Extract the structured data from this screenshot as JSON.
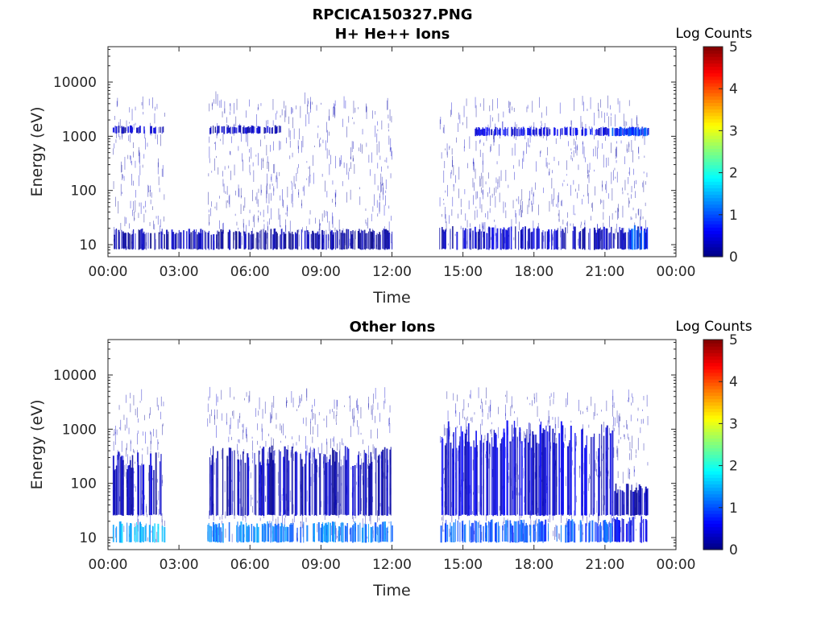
{
  "figure_title": "RPCICA150327.PNG",
  "chart_data": [
    {
      "type": "heatmap",
      "title": "H+ He++ Ions",
      "xlabel": "Time",
      "ylabel": "Energy (eV)",
      "x_ticks": [
        "00:00",
        "03:00",
        "06:00",
        "09:00",
        "12:00",
        "15:00",
        "18:00",
        "21:00",
        "00:00"
      ],
      "x_range_hours": [
        0,
        24
      ],
      "y_scale": "log",
      "y_ticks": [
        10,
        100,
        1000,
        10000
      ],
      "y_tick_labels": [
        "10",
        "100",
        "1000",
        "10000"
      ],
      "y_range": [
        6,
        45000
      ],
      "colorbar": {
        "label": "Log Counts",
        "ticks": [
          "0",
          "1",
          "2",
          "3",
          "4",
          "5"
        ],
        "range": [
          0,
          5
        ],
        "colormap": "jet"
      },
      "data_windows_hours": [
        [
          0.2,
          2.4
        ],
        [
          4.2,
          12.0
        ],
        [
          14.0,
          22.8
        ]
      ],
      "bands": [
        {
          "t0": 0.2,
          "t1": 2.4,
          "e0": 1100,
          "e1": 1600,
          "level": 0.3
        },
        {
          "t0": 4.2,
          "t1": 7.3,
          "e0": 1100,
          "e1": 1600,
          "level": 0.3
        },
        {
          "t0": 15.5,
          "t1": 22.8,
          "e0": 1000,
          "e1": 1500,
          "level": 0.5
        },
        {
          "t0": 21.2,
          "t1": 22.8,
          "e0": 1000,
          "e1": 1500,
          "level": 1.0
        },
        {
          "t0": 0.2,
          "t1": 12.0,
          "e0": 8,
          "e1": 20,
          "level": 0.2
        },
        {
          "t0": 14.0,
          "t1": 22.8,
          "e0": 8,
          "e1": 22,
          "level": 0.3
        },
        {
          "t0": 22.0,
          "t1": 22.8,
          "e0": 8,
          "e1": 25,
          "level": 1.0
        }
      ]
    },
    {
      "type": "heatmap",
      "title": "Other Ions",
      "xlabel": "Time",
      "ylabel": "Energy (eV)",
      "x_ticks": [
        "00:00",
        "03:00",
        "06:00",
        "09:00",
        "12:00",
        "15:00",
        "18:00",
        "21:00",
        "00:00"
      ],
      "x_range_hours": [
        0,
        24
      ],
      "y_scale": "log",
      "y_ticks": [
        10,
        100,
        1000,
        10000
      ],
      "y_tick_labels": [
        "10",
        "100",
        "1000",
        "10000"
      ],
      "y_range": [
        6,
        45000
      ],
      "colorbar": {
        "label": "Log Counts",
        "ticks": [
          "0",
          "1",
          "2",
          "3",
          "4",
          "5"
        ],
        "range": [
          0,
          5
        ],
        "colormap": "jet"
      },
      "data_windows_hours": [
        [
          0.2,
          2.4
        ],
        [
          4.2,
          12.0
        ],
        [
          14.0,
          22.8
        ]
      ],
      "bands": [
        {
          "t0": 0.2,
          "t1": 2.4,
          "e0": 8,
          "e1": 20,
          "level": 1.5
        },
        {
          "t0": 4.2,
          "t1": 12.0,
          "e0": 8,
          "e1": 20,
          "level": 1.2
        },
        {
          "t0": 14.0,
          "t1": 21.3,
          "e0": 8,
          "e1": 22,
          "level": 1.0
        },
        {
          "t0": 21.3,
          "t1": 22.8,
          "e0": 8,
          "e1": 25,
          "level": 0.6
        },
        {
          "t0": 0.2,
          "t1": 2.4,
          "e0": 25,
          "e1": 400,
          "level": 0.3
        },
        {
          "t0": 4.2,
          "t1": 12.0,
          "e0": 25,
          "e1": 500,
          "level": 0.3
        },
        {
          "t0": 14.0,
          "t1": 21.3,
          "e0": 25,
          "e1": 1500,
          "level": 0.4
        },
        {
          "t0": 21.3,
          "t1": 22.8,
          "e0": 25,
          "e1": 100,
          "level": 0.2
        }
      ]
    }
  ]
}
